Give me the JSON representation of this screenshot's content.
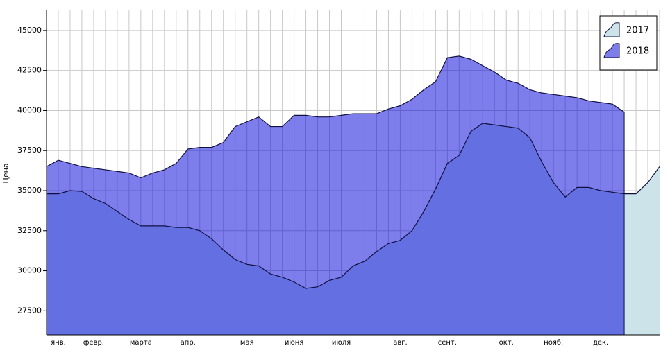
{
  "chart_data": {
    "type": "area",
    "y_label": "Цена",
    "categories": [
      null,
      "янв.",
      null,
      null,
      "февр.",
      null,
      null,
      null,
      "марта",
      null,
      null,
      null,
      "апр.",
      null,
      null,
      null,
      null,
      "мая",
      null,
      null,
      null,
      "июня",
      null,
      null,
      null,
      "июля",
      null,
      null,
      null,
      null,
      "авг.",
      null,
      null,
      null,
      "сент.",
      null,
      null,
      null,
      null,
      "окт.",
      null,
      null,
      null,
      "нояб.",
      null,
      null,
      null,
      "дек.",
      null,
      null,
      null,
      null,
      null
    ],
    "series": [
      {
        "name": "2017",
        "color": "#cce3ea",
        "opacity": 1,
        "values": [
          34800,
          34800,
          35000,
          34950,
          34500,
          34200,
          33700,
          33200,
          32800,
          32800,
          32800,
          32700,
          32700,
          32500,
          32000,
          31300,
          30700,
          30400,
          30300,
          29800,
          29600,
          29300,
          28900,
          29000,
          29400,
          29600,
          30300,
          30600,
          31200,
          31700,
          31900,
          32500,
          33700,
          35100,
          36700,
          37200,
          38700,
          39200,
          39100,
          39000,
          38900,
          38300,
          36800,
          35500,
          34600,
          35200,
          35200,
          35000,
          34900,
          34800,
          34800,
          35500,
          36500
        ]
      },
      {
        "name": "2018",
        "color": "#0000da",
        "opacity": 0.51,
        "values": [
          36500,
          36900,
          36700,
          36500,
          36400,
          36300,
          36200,
          36100,
          35800,
          36100,
          36300,
          36700,
          37600,
          37700,
          37700,
          38000,
          39000,
          39300,
          39600,
          39000,
          39000,
          39700,
          39700,
          39600,
          39600,
          39700,
          39800,
          39800,
          39800,
          40100,
          40300,
          40700,
          41300,
          41800,
          43300,
          43400,
          43200,
          42800,
          42400,
          41900,
          41700,
          41300,
          41100,
          41000,
          40900,
          40800,
          40600,
          40500,
          40400,
          39900,
          null,
          null,
          null
        ]
      }
    ],
    "line_color": "#101040",
    "ylim": [
      26000,
      46250
    ],
    "yticks": [
      27500,
      30000,
      32500,
      35000,
      37500,
      40000,
      42500,
      45000
    ],
    "grid": true,
    "legend": "top-right"
  }
}
